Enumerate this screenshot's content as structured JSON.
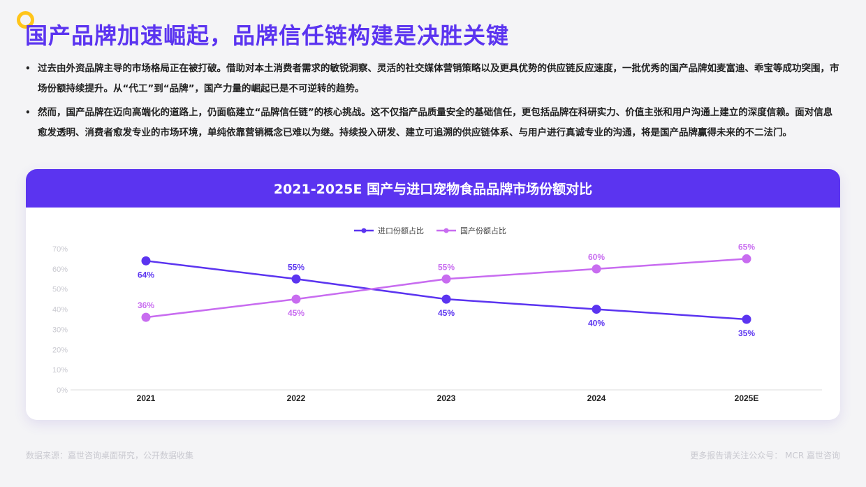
{
  "title": "国产品牌加速崛起，品牌信任链构建是决胜关键",
  "bullets": [
    "过去由外资品牌主导的市场格局正在被打破。借助对本土消费者需求的敏锐洞察、灵活的社交媒体营销策略以及更具优势的供应链反应速度，一批优秀的国产品牌如麦富迪、乖宝等成功突围，市场份额持续提升。从“代工”到“品牌”，国产力量的崛起已是不可逆转的趋势。",
    "然而，国产品牌在迈向高端化的道路上，仍面临建立“品牌信任链”的核心挑战。这不仅指产品质量安全的基础信任，更包括品牌在科研实力、价值主张和用户沟通上建立的深度信赖。面对信息愈发透明、消费者愈发专业的市场环境，单纯依靠营销概念已难以为继。持续投入研发、建立可追溯的供应链体系、与用户进行真诚专业的沟通，将是国产品牌赢得未来的不二法门。"
  ],
  "footer": {
    "source": "数据来源：嘉世咨询桌面研究，公开数据收集",
    "follow": "更多报告请关注公众号： MCR 嘉世咨询"
  },
  "chart_data": {
    "type": "line",
    "title": "2021-2025E 国产与进口宠物食品品牌市场份额对比",
    "x": [
      "2021",
      "2022",
      "2023",
      "2024",
      "2025E"
    ],
    "ylim": [
      0,
      70
    ],
    "yticks": [
      "0%",
      "10%",
      "20%",
      "30%",
      "40%",
      "50%",
      "60%",
      "70%"
    ],
    "legend_position": "top-center",
    "grid": false,
    "series": [
      {
        "name": "进口份额占比",
        "values": [
          64,
          55,
          45,
          40,
          35
        ],
        "labels": [
          "64%",
          "55%",
          "45%",
          "40%",
          "35%"
        ],
        "color": "#5b34f0"
      },
      {
        "name": "国产份额占比",
        "values": [
          36,
          45,
          55,
          60,
          65
        ],
        "labels": [
          "36%",
          "45%",
          "55%",
          "60%",
          "65%"
        ],
        "color": "#c86cf0"
      }
    ]
  }
}
